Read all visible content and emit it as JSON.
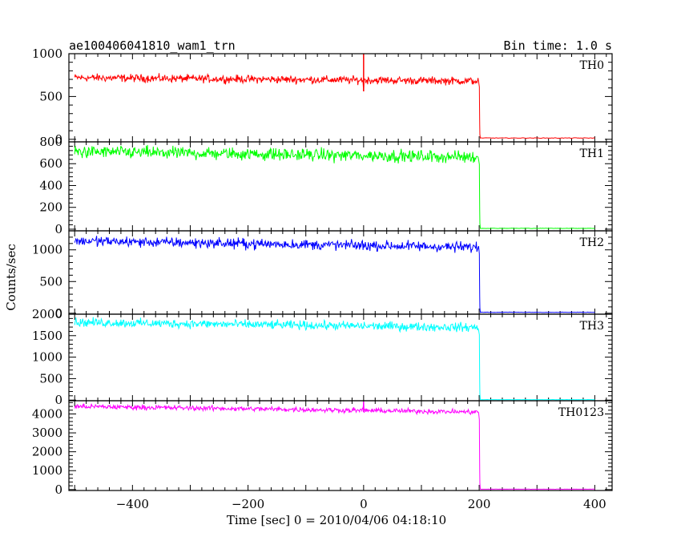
{
  "header": {
    "title": "ae100406041810_wam1_trn",
    "bin_time": "Bin time: 1.0 s"
  },
  "chart_data": {
    "type": "line",
    "title": "ae100406041810_wam1_trn",
    "subtitle": "Bin time: 1.0 s",
    "xlabel": "Time [sec] 0 = 2010/04/06 04:18:10",
    "ylabel": "Counts/sec",
    "xlim": [
      -510,
      430
    ],
    "x_ticks": [
      -400,
      -200,
      0,
      200,
      400
    ],
    "x_tick_labels": [
      "−400",
      "−200",
      "0",
      "200",
      "400"
    ],
    "grid": false,
    "step_time": 200,
    "data_start": -500,
    "data_end": 400,
    "panels": [
      {
        "name": "TH0",
        "color": "#ff0000",
        "ylim": [
          -30,
          1000
        ],
        "y_ticks": [
          0,
          500,
          1000
        ],
        "y_tick_labels": [
          "0",
          "500",
          "1000"
        ],
        "level_start": 720,
        "level_end": 680,
        "noise": 45,
        "post_level": 15,
        "spikes": [
          {
            "x": 0,
            "y": 1000
          },
          {
            "x": 0,
            "y": 560
          }
        ]
      },
      {
        "name": "TH1",
        "color": "#00ff00",
        "ylim": [
          -15,
          800
        ],
        "y_ticks": [
          0,
          200,
          400,
          600,
          800
        ],
        "y_tick_labels": [
          "0",
          "200",
          "400",
          "600",
          "800"
        ],
        "level_start": 710,
        "level_end": 660,
        "noise": 55,
        "post_level": 8,
        "spikes": []
      },
      {
        "name": "TH2",
        "color": "#0000ff",
        "ylim": [
          -15,
          1300
        ],
        "y_ticks": [
          0,
          500,
          1000
        ],
        "y_tick_labels": [
          "0",
          "500",
          "1000"
        ],
        "level_start": 1140,
        "level_end": 1040,
        "noise": 80,
        "post_level": 15,
        "spikes": []
      },
      {
        "name": "TH3",
        "color": "#00ffff",
        "ylim": [
          -15,
          2000
        ],
        "y_ticks": [
          0,
          500,
          1000,
          1500,
          2000
        ],
        "y_tick_labels": [
          "0",
          "500",
          "1000",
          "1500",
          "2000"
        ],
        "level_start": 1810,
        "level_end": 1690,
        "noise": 100,
        "post_level": 10,
        "spikes": []
      },
      {
        "name": "TH0123",
        "color": "#ff00ff",
        "ylim": [
          -50,
          4700
        ],
        "y_ticks": [
          0,
          1000,
          2000,
          3000,
          4000
        ],
        "y_tick_labels": [
          "0",
          "1000",
          "2000",
          "3000",
          "4000"
        ],
        "level_start": 4400,
        "level_end": 4100,
        "noise": 130,
        "post_level": 20,
        "spikes": [
          {
            "x": 0,
            "y": 4650
          }
        ]
      }
    ]
  }
}
